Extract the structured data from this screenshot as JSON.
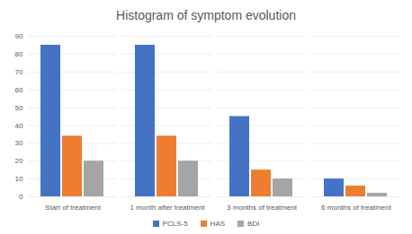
{
  "chart_data": {
    "type": "bar",
    "title": "Histogram of symptom evolution",
    "categories": [
      "Start of treatment",
      "1 month after treatment",
      "3 months of treatment",
      "6 months of treatment"
    ],
    "series": [
      {
        "name": "PCLS-5",
        "color": "#4472c4",
        "values": [
          85,
          85,
          45,
          10
        ]
      },
      {
        "name": "HAS",
        "color": "#ed7d31",
        "values": [
          34,
          34,
          15,
          6
        ]
      },
      {
        "name": "BDI",
        "color": "#a5a5a5",
        "values": [
          20,
          20,
          10,
          2
        ]
      }
    ],
    "ylim": [
      0,
      90
    ],
    "yticks": [
      0,
      10,
      20,
      30,
      40,
      50,
      60,
      70,
      80,
      90
    ],
    "grid": true,
    "legend": "bottom"
  }
}
